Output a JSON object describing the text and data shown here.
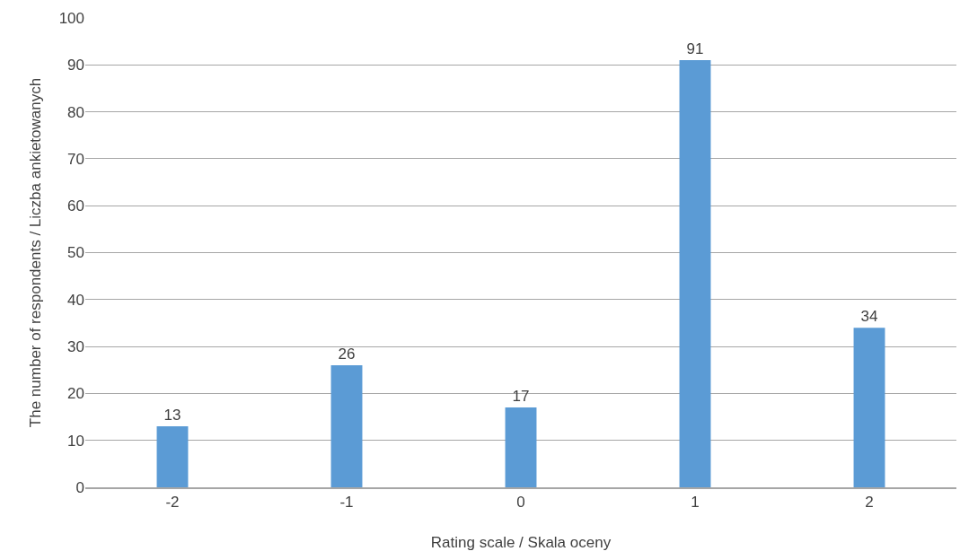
{
  "chart_data": {
    "type": "bar",
    "xlabel": "Rating scale / Skala oceny",
    "ylabel": "The number of respondents / Liczba ankietowanych",
    "categories": [
      "-2",
      "-1",
      "0",
      "1",
      "2"
    ],
    "values": [
      13,
      26,
      17,
      91,
      34
    ],
    "color": "#5b9bd5",
    "ylim": [
      0,
      100
    ],
    "yticks": [
      0,
      10,
      20,
      30,
      40,
      50,
      60,
      70,
      80,
      90,
      100
    ],
    "grid": "y",
    "legend": false,
    "data_labels": true
  }
}
